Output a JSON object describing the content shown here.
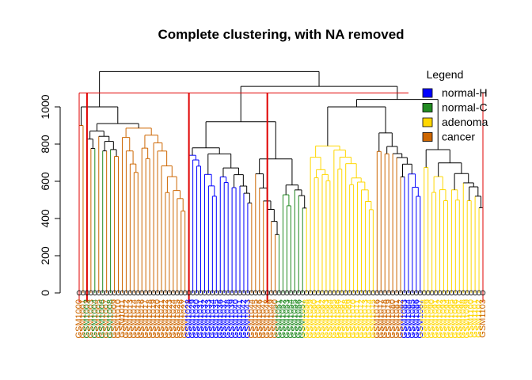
{
  "chart_data": {
    "type": "dendrogram",
    "title": "Complete clustering, with NA removed",
    "xlabel": "",
    "ylabel": "",
    "ylim": [
      0,
      1200
    ],
    "yticks": [
      0,
      200,
      400,
      600,
      800,
      1000
    ],
    "ytick_labels": [
      "0",
      "200",
      "400",
      "600",
      "800",
      "1000"
    ],
    "cut_height": 1075,
    "cut_color": "#e00000",
    "legend": {
      "title": "Legend",
      "position": "top-right",
      "entries": [
        {
          "label": "normal-H",
          "color": "#0000ff"
        },
        {
          "label": "normal-C",
          "color": "#228b22"
        },
        {
          "label": "adenoma",
          "color": "#ffd700"
        },
        {
          "label": "cancer",
          "color": "#cd6600"
        }
      ]
    },
    "root_height": 1190,
    "n_leaves": 104,
    "clusters": [
      {
        "start": 0,
        "end": 2,
        "height": 900
      },
      {
        "start": 2,
        "end": 28,
        "height": 910
      },
      {
        "start": 28,
        "end": 45,
        "height": 780
      },
      {
        "start": 45,
        "end": 52,
        "height": 640
      },
      {
        "start": 52,
        "end": 59,
        "height": 580
      },
      {
        "start": 59,
        "end": 76,
        "height": 790
      },
      {
        "start": 76,
        "end": 88,
        "height": 860
      },
      {
        "start": 88,
        "end": 104,
        "height": 770
      }
    ],
    "leaf_groups": [
      "cancer",
      "cancer",
      "normal-C",
      "cancer",
      "normal-C",
      "cancer",
      "normal-C",
      "cancer",
      "normal-C",
      "cancer",
      "cancer",
      "cancer",
      "cancer",
      "cancer",
      "cancer",
      "cancer",
      "cancer",
      "cancer",
      "cancer",
      "cancer",
      "cancer",
      "cancer",
      "cancer",
      "cancer",
      "cancer",
      "cancer",
      "cancer",
      "cancer",
      "normal-H",
      "normal-H",
      "normal-H",
      "normal-H",
      "normal-H",
      "normal-H",
      "normal-H",
      "normal-H",
      "normal-H",
      "normal-H",
      "normal-H",
      "normal-H",
      "normal-H",
      "normal-H",
      "normal-H",
      "normal-H",
      "cancer",
      "cancer",
      "cancer",
      "cancer",
      "cancer",
      "cancer",
      "cancer",
      "normal-C",
      "normal-C",
      "normal-C",
      "normal-C",
      "normal-C",
      "normal-C",
      "normal-C",
      "adenoma",
      "adenoma",
      "adenoma",
      "adenoma",
      "adenoma",
      "adenoma",
      "adenoma",
      "adenoma",
      "adenoma",
      "adenoma",
      "adenoma",
      "adenoma",
      "adenoma",
      "adenoma",
      "adenoma",
      "adenoma",
      "adenoma",
      "adenoma",
      "cancer",
      "cancer",
      "cancer",
      "cancer",
      "cancer",
      "cancer",
      "cancer",
      "normal-H",
      "normal-H",
      "normal-H",
      "normal-H",
      "normal-H",
      "adenoma",
      "adenoma",
      "adenoma",
      "adenoma",
      "adenoma",
      "adenoma",
      "adenoma",
      "adenoma",
      "adenoma",
      "adenoma",
      "adenoma",
      "adenoma",
      "adenoma",
      "adenoma",
      "adenoma",
      "cancer",
      "cancer",
      "cancer"
    ],
    "leaf_label": "GSM"
  }
}
